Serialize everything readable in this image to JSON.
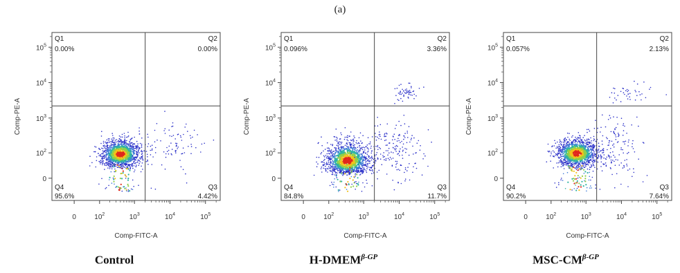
{
  "figure_label": "(a)",
  "chart_data": [
    {
      "type": "scatter",
      "title": "Control",
      "title_sup": "",
      "xlabel": "Comp-FITC-A",
      "ylabel": "Comp-PE-A",
      "x_ticks": [
        "0",
        "10^2",
        "10^3",
        "10^4",
        "10^5"
      ],
      "y_ticks": [
        "0",
        "10^2",
        "10^3",
        "10^4",
        "10^5"
      ],
      "x_scale": "biexponential",
      "y_scale": "biexponential",
      "gates": {
        "x": 2000,
        "y": 2200
      },
      "quadrants": [
        {
          "name": "Q1",
          "value": "0.00%",
          "position": "top-left"
        },
        {
          "name": "Q2",
          "value": "0.00%",
          "position": "top-right"
        },
        {
          "name": "Q4",
          "value": "95.6%",
          "position": "bottom-left"
        },
        {
          "name": "Q3",
          "value": "4.42%",
          "position": "bottom-right"
        }
      ],
      "populations": [
        {
          "center": [
            400,
            90
          ],
          "spread": [
            0.28,
            0.22
          ],
          "count": 1400
        },
        {
          "center": [
            12000,
            200
          ],
          "spread": [
            0.45,
            0.35
          ],
          "count": 90
        }
      ]
    },
    {
      "type": "scatter",
      "title": "H-DMEM",
      "title_sup": "β-GP",
      "xlabel": "Comp-FITC-A",
      "ylabel": "Comp-PE-A",
      "x_ticks": [
        "0",
        "10^2",
        "10^3",
        "10^4",
        "10^5"
      ],
      "y_ticks": [
        "0",
        "10^2",
        "10^3",
        "10^4",
        "10^5"
      ],
      "x_scale": "biexponential",
      "y_scale": "biexponential",
      "gates": {
        "x": 2000,
        "y": 2200
      },
      "quadrants": [
        {
          "name": "Q1",
          "value": "0.096%",
          "position": "top-left"
        },
        {
          "name": "Q2",
          "value": "3.36%",
          "position": "top-right"
        },
        {
          "name": "Q4",
          "value": "84.8%",
          "position": "bottom-left"
        },
        {
          "name": "Q3",
          "value": "11.7%",
          "position": "bottom-right"
        }
      ],
      "populations": [
        {
          "center": [
            350,
            55
          ],
          "spread": [
            0.32,
            0.3
          ],
          "count": 1400
        },
        {
          "center": [
            6000,
            150
          ],
          "spread": [
            0.5,
            0.45
          ],
          "count": 190
        },
        {
          "center": [
            15000,
            5000
          ],
          "spread": [
            0.18,
            0.12
          ],
          "count": 60
        }
      ]
    },
    {
      "type": "scatter",
      "title": "MSC-CM",
      "title_sup": "β-GP",
      "xlabel": "Comp-FITC-A",
      "ylabel": "Comp-PE-A",
      "x_ticks": [
        "0",
        "10^2",
        "10^3",
        "10^4",
        "10^5"
      ],
      "y_ticks": [
        "0",
        "10^2",
        "10^3",
        "10^4",
        "10^5"
      ],
      "x_scale": "biexponential",
      "y_scale": "biexponential",
      "gates": {
        "x": 2000,
        "y": 2200
      },
      "quadrants": [
        {
          "name": "Q1",
          "value": "0.057%",
          "position": "top-left"
        },
        {
          "name": "Q2",
          "value": "2.13%",
          "position": "top-right"
        },
        {
          "name": "Q4",
          "value": "90.2%",
          "position": "bottom-left"
        },
        {
          "name": "Q3",
          "value": "7.64%",
          "position": "bottom-right"
        }
      ],
      "populations": [
        {
          "center": [
            550,
            95
          ],
          "spread": [
            0.3,
            0.22
          ],
          "count": 1400
        },
        {
          "center": [
            7000,
            150
          ],
          "spread": [
            0.45,
            0.45
          ],
          "count": 140
        },
        {
          "center": [
            15000,
            5000
          ],
          "spread": [
            0.3,
            0.2
          ],
          "count": 45
        }
      ]
    }
  ]
}
